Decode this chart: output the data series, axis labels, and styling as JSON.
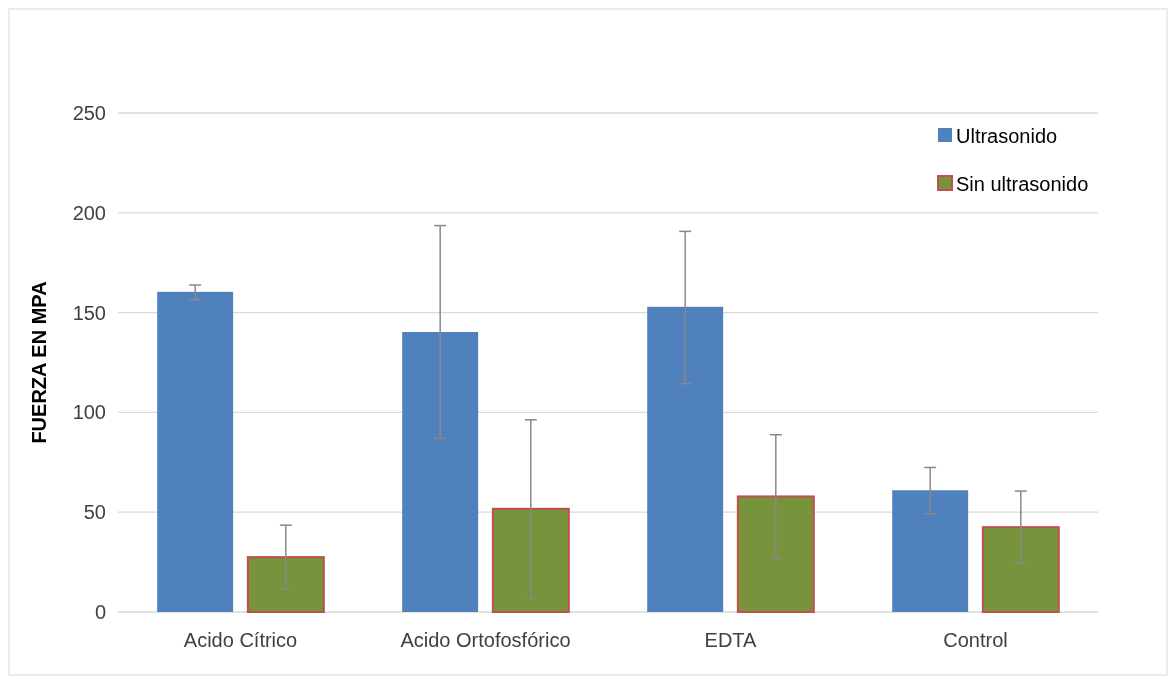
{
  "chart_data": {
    "type": "bar",
    "ylabel": "FUERZA EN MPA",
    "categories": [
      "Acido Cítrico",
      "Acido Ortofosfórico",
      "EDTA",
      "Control"
    ],
    "series": [
      {
        "name": "Ultrasonido",
        "color": "#4f81bd",
        "values": [
          160.4,
          140.3,
          152.9,
          61
        ],
        "errors": [
          [
            156.5,
            163.8
          ],
          [
            86.9,
            193.6
          ],
          [
            114.4,
            190.7
          ],
          [
            49.2,
            72.4
          ]
        ]
      },
      {
        "name": "Sin ultrasonido",
        "color": "#77933c",
        "values": [
          27.5,
          51.7,
          57.9,
          42.5
        ],
        "errors": [
          [
            11.4,
            43.5
          ],
          [
            6.8,
            96.3
          ],
          [
            26.9,
            88.8
          ],
          [
            24.4,
            60.6
          ]
        ]
      }
    ],
    "ylim": [
      0,
      250
    ],
    "yticks": [
      0,
      50,
      100,
      150,
      200,
      250
    ],
    "grid": "y",
    "legend": "top right"
  }
}
